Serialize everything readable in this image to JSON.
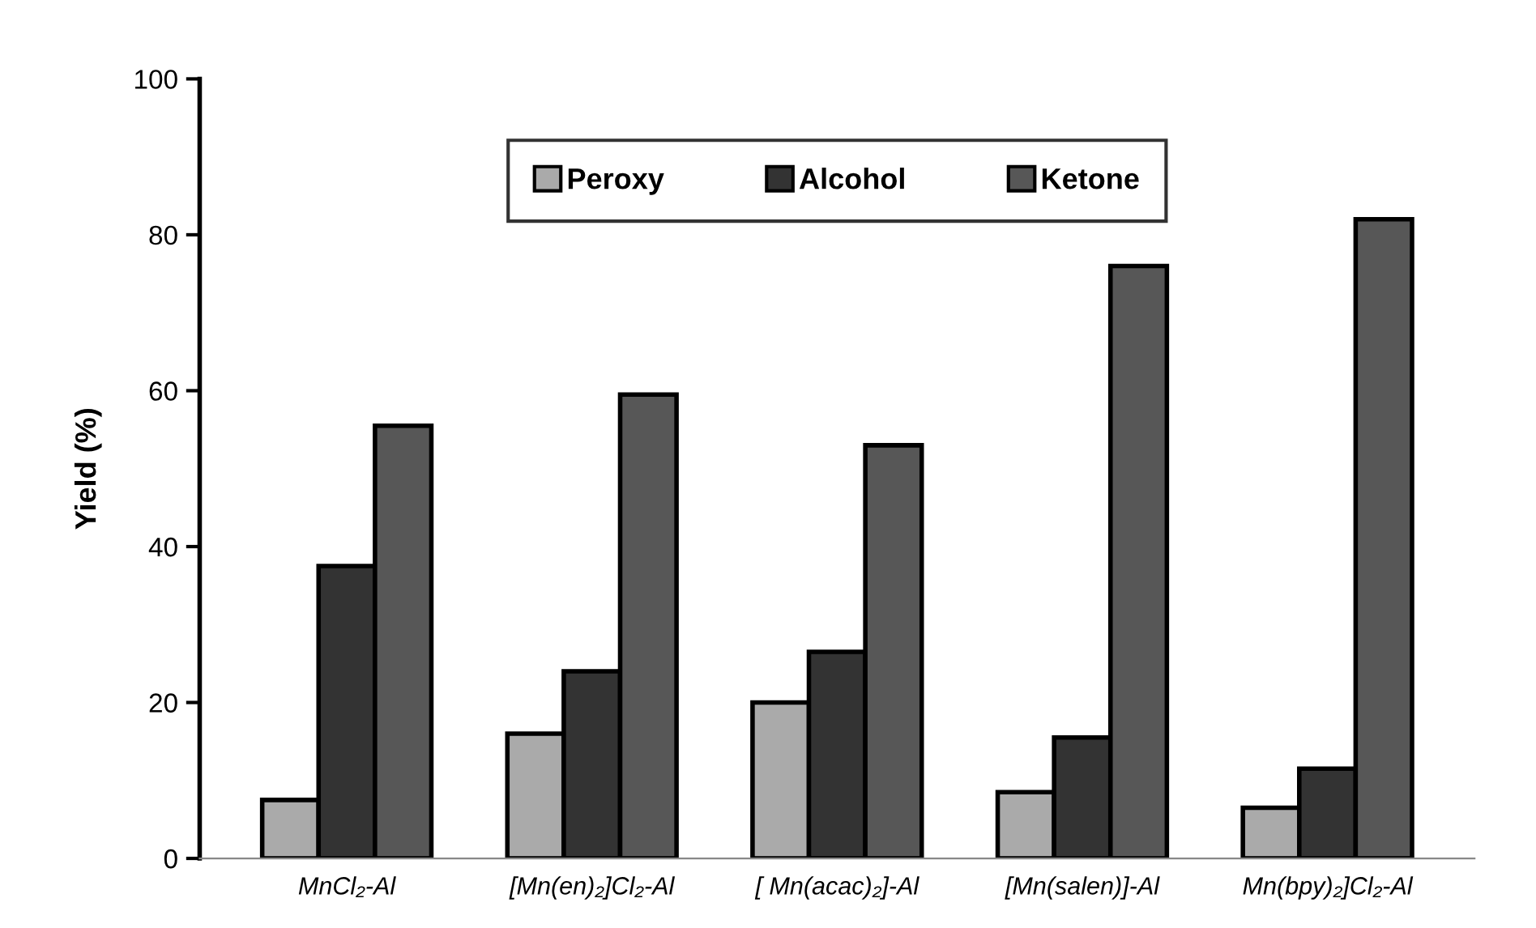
{
  "chart_data": {
    "type": "bar",
    "ylabel": "Yield (%)",
    "categories": [
      "MnCl₂-Al",
      "[Mn(en)₂]Cl₂-Al",
      "[ Mn(acac)₂]-Al",
      "[Mn(salen)]-Al",
      "Mn(bpy)₂]Cl₂-Al"
    ],
    "series": [
      {
        "name": "Peroxy",
        "color": "#aaaaaa",
        "values": [
          7.5,
          16,
          20,
          8.5,
          6.5
        ]
      },
      {
        "name": "Alcohol",
        "color": "#333333",
        "values": [
          37.5,
          24,
          26.5,
          15.5,
          11.5
        ]
      },
      {
        "name": "Ketone",
        "color": "#575757",
        "values": [
          55.5,
          59.5,
          53,
          76,
          82
        ]
      }
    ],
    "ylim": [
      0,
      100
    ],
    "yticks": [
      0,
      20,
      40,
      60,
      80,
      100
    ],
    "grid": false,
    "legend": "top"
  }
}
